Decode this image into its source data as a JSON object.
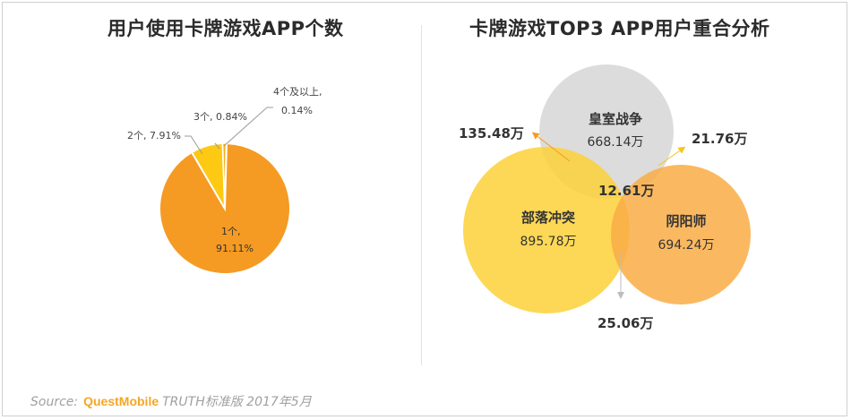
{
  "source": {
    "label": "Source:",
    "brand": "QuestMobile",
    "detail": "TRUTH标准版 2017年5月"
  },
  "chart_data": [
    {
      "type": "pie",
      "title": "用户使用卡牌游戏APP个数",
      "slices": [
        {
          "label": "1个,",
          "value": 91.11,
          "value_text": "91.11%",
          "color": "#f59a23"
        },
        {
          "label": "2个, 7.91%",
          "value": 7.91,
          "color": "#fdc913"
        },
        {
          "label": "3个, 0.84%",
          "value": 0.84,
          "color": "#f5b020"
        },
        {
          "label": "4个及以上,",
          "value": 0.14,
          "value_text": "0.14%",
          "color": "#f0d060"
        }
      ]
    },
    {
      "type": "venn",
      "title": "卡牌游戏TOP3 APP用户重合分析",
      "sets": [
        {
          "name": "皇室战争",
          "value_text": "668.14万",
          "color": "#d9d9d9"
        },
        {
          "name": "部落冲突",
          "value_text": "895.78万",
          "color": "#fdd23a"
        },
        {
          "name": "阴阳师",
          "value_text": "694.24万",
          "color": "#f9b04a"
        }
      ],
      "overlaps": [
        {
          "sets": [
            "皇室战争",
            "部落冲突"
          ],
          "value_text": "135.48万"
        },
        {
          "sets": [
            "皇室战争",
            "阴阳师"
          ],
          "value_text": "21.76万"
        },
        {
          "sets": [
            "部落冲突",
            "阴阳师"
          ],
          "value_text": "25.06万"
        },
        {
          "sets": [
            "皇室战争",
            "部落冲突",
            "阴阳师"
          ],
          "value_text": "12.61万"
        }
      ]
    }
  ]
}
